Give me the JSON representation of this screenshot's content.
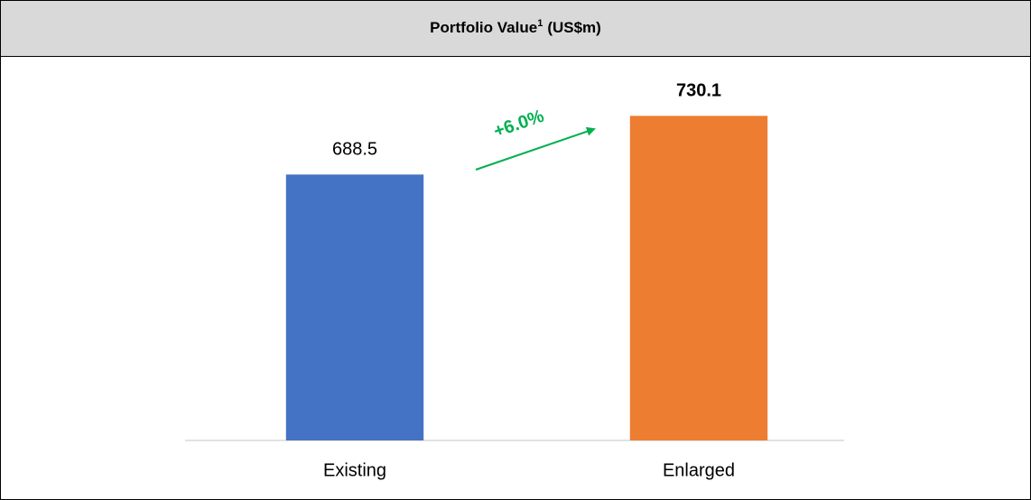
{
  "chart_data": {
    "type": "bar",
    "title": "Portfolio Value",
    "title_note": "1",
    "title_unit": "(US$m)",
    "categories": [
      "Existing",
      "Enlarged"
    ],
    "values": [
      688.5,
      730.1
    ],
    "colors": [
      "#4472c4",
      "#ed7d31"
    ],
    "value_label_bold": [
      false,
      true
    ],
    "ylim": [
      500,
      770
    ],
    "annotation": {
      "text": "+6.0%",
      "color": "#00b050"
    }
  }
}
